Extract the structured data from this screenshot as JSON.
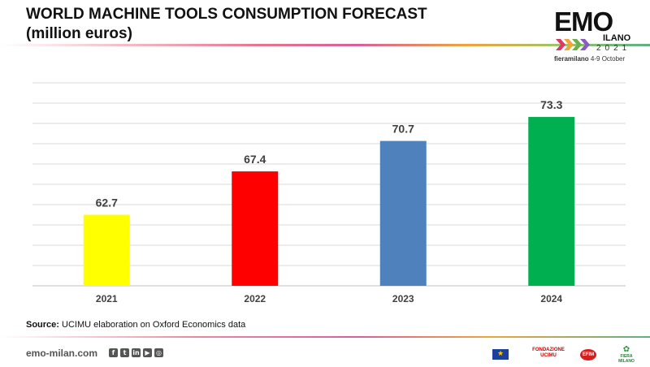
{
  "slide": {
    "title_line1": "WORLD MACHINE TOOLS CONSUMPTION FORECAST",
    "title_line2": "(million euros)"
  },
  "logo": {
    "emo": "EMO",
    "milano": "ILANO",
    "year": "2021",
    "fiera_brand": "fieramilano",
    "dates": "4-9 October"
  },
  "chart_data": {
    "type": "bar",
    "categories": [
      "2021",
      "2022",
      "2023",
      "2024"
    ],
    "values": [
      62.7,
      67.4,
      70.7,
      73.3
    ],
    "value_labels": [
      "62.7",
      "67.4",
      "70.7",
      "73.3"
    ],
    "colors": [
      "#FFFF00",
      "#FF0000",
      "#4F81BD",
      "#00B050"
    ],
    "ylim": [
      55,
      77
    ],
    "grid": true
  },
  "source": {
    "label": "Source:",
    "text": "UCIMU elaboration on Oxford Economics data"
  },
  "footer": {
    "website": "emo-milan.com",
    "social_icons": [
      "facebook-icon",
      "twitter-icon",
      "linkedin-icon",
      "youtube-icon",
      "instagram-icon"
    ],
    "partners": {
      "ucimu": "FONDAZIONE UCIMU",
      "efim": "EFIM",
      "fiera": "FIERA MILANO"
    }
  }
}
